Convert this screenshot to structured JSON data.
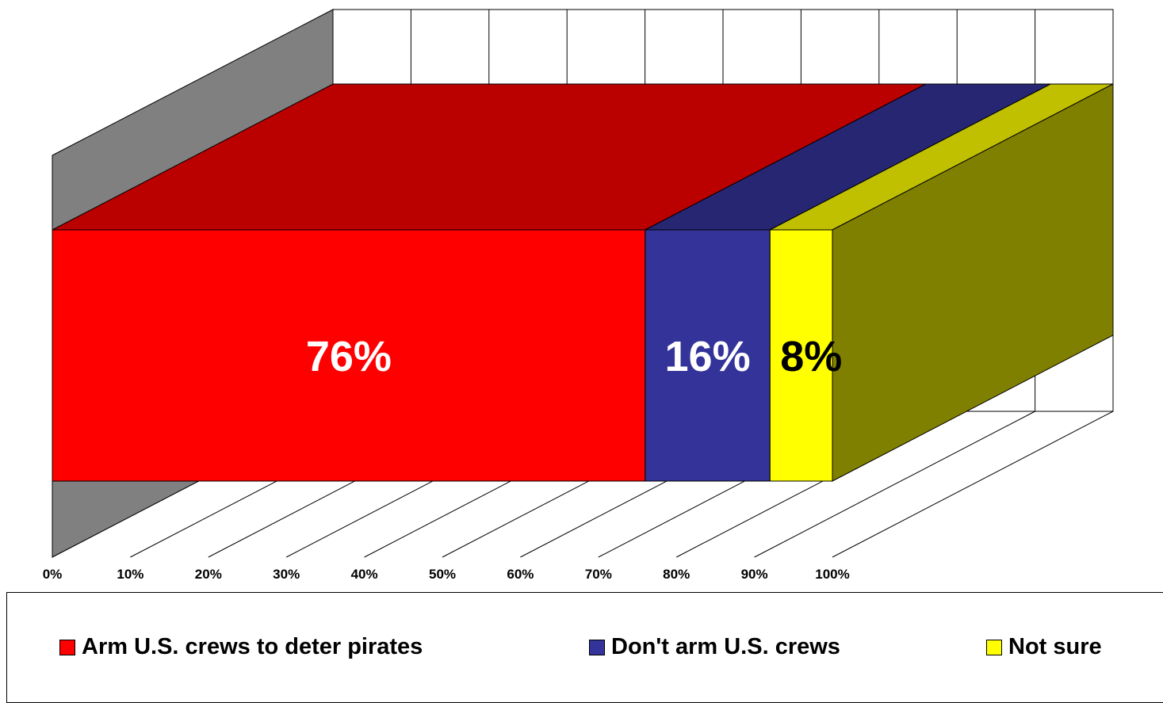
{
  "chart_data": {
    "type": "bar",
    "orientation": "horizontal-stacked-100-3d",
    "categories": [
      ""
    ],
    "series": [
      {
        "name": "Arm U.S. crews to deter pirates",
        "values": [
          76
        ],
        "label": "76%"
      },
      {
        "name": "Don't arm U.S. crews",
        "values": [
          16
        ],
        "label": "16%"
      },
      {
        "name": "Not sure",
        "values": [
          8
        ],
        "label": "8%"
      }
    ],
    "xticks": [
      "0%",
      "10%",
      "20%",
      "30%",
      "40%",
      "50%",
      "60%",
      "70%",
      "80%",
      "90%",
      "100%"
    ],
    "xlim": [
      0,
      100
    ],
    "grid": true,
    "legend": "bottom",
    "colors": {
      "series": [
        "#ff0000",
        "#333399",
        "#ffff00"
      ],
      "series_top": [
        "#bb0000",
        "#262673",
        "#c0c000"
      ],
      "side": "#808000",
      "back_wall": "#808080",
      "label_colors": [
        "#ffffff",
        "#ffffff",
        "#000000"
      ]
    }
  }
}
